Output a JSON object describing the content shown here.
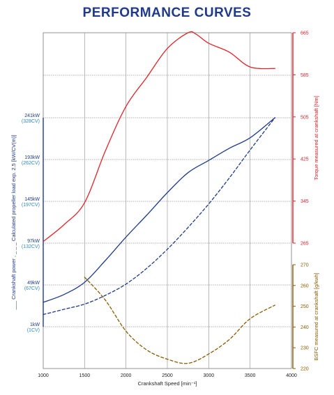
{
  "title": "PERFORMANCE CURVES",
  "colors": {
    "title": "#1f3a8a",
    "power": "#1f3a8a",
    "power_ticks": "#2f86c7",
    "torque": "#e32229",
    "bsfc": "#8a5a00",
    "grid": "#9a9a9a"
  },
  "chart_data": {
    "type": "line",
    "grid": true,
    "x_axis": {
      "label": "Crankshaft Speed [min⁻¹]",
      "range": [
        1000,
        4000
      ],
      "ticks": [
        "1000",
        "1500",
        "2000",
        "2500",
        "3000",
        "3500",
        "4000"
      ]
    },
    "left_axis": {
      "label": "___ Crankshaft power , _ _ _ Calculated propeller load exp. 2.5  [kW/CV(m)]",
      "range": [
        1,
        241
      ],
      "ticks": [
        {
          "value": 1,
          "kw": "1kW",
          "cv": "(1CV)"
        },
        {
          "value": 49,
          "kw": "49kW",
          "cv": "(67CV)"
        },
        {
          "value": 97,
          "kw": "97kW",
          "cv": "(132CV)"
        },
        {
          "value": 145,
          "kw": "145kW",
          "cv": "(197CV)"
        },
        {
          "value": 193,
          "kw": "193kW",
          "cv": "(262CV)"
        },
        {
          "value": 241,
          "kw": "241kW",
          "cv": "(328CV)"
        }
      ]
    },
    "torque_axis": {
      "label": "Torque measured at crankshaft [Nm]",
      "range": [
        265,
        665
      ],
      "ticks": [
        "265",
        "345",
        "425",
        "505",
        "585",
        "665"
      ]
    },
    "bsfc_axis": {
      "label": "BSFC measured  at crankshaft [g/kwh]",
      "range": [
        220,
        270
      ],
      "ticks": [
        "220",
        "230",
        "240",
        "250",
        "260",
        "270"
      ]
    },
    "series": [
      {
        "axis": "left",
        "style": "solid",
        "x": [
          1000,
          1250,
          1500,
          1750,
          2000,
          2250,
          2500,
          2750,
          3000,
          3250,
          3500,
          3800
        ],
        "y": [
          29,
          38,
          52,
          77,
          104,
          129,
          155,
          178,
          192,
          206,
          218,
          241
        ]
      },
      {
        "axis": "left",
        "style": "dashed",
        "x": [
          1000,
          1250,
          1500,
          1750,
          2000,
          2250,
          2500,
          2750,
          3000,
          3250,
          3500,
          3800
        ],
        "y": [
          15,
          21,
          27,
          37,
          50,
          68,
          90,
          115,
          142,
          172,
          204,
          241
        ]
      },
      {
        "axis": "torque",
        "style": "solid",
        "x": [
          1000,
          1250,
          1500,
          1750,
          2000,
          2250,
          2500,
          2750,
          2850,
          3000,
          3250,
          3500,
          3800
        ],
        "y": [
          268,
          300,
          342,
          440,
          525,
          580,
          635,
          665,
          662,
          645,
          628,
          600,
          597
        ]
      },
      {
        "axis": "bsfc",
        "style": "dashed",
        "x": [
          1500,
          1750,
          2000,
          2250,
          2500,
          2750,
          3000,
          3250,
          3500,
          3800
        ],
        "y": [
          264,
          253,
          238,
          229,
          224.5,
          222.5,
          227,
          234,
          244,
          250.5
        ]
      }
    ]
  }
}
